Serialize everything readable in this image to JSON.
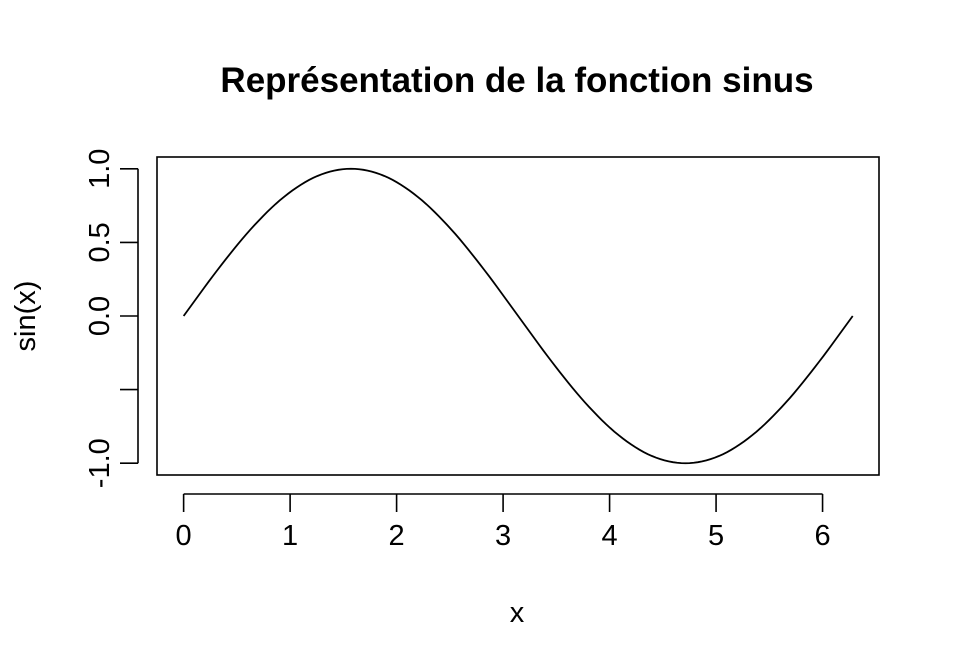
{
  "chart_data": {
    "type": "line",
    "title": "Représentation de la fonction sinus",
    "xlabel": "x",
    "ylabel": "sin(x)",
    "xlim": [
      -0.25,
      6.53
    ],
    "ylim": [
      -1.08,
      1.08
    ],
    "x_ticks": [
      0,
      1,
      2,
      3,
      4,
      5,
      6
    ],
    "x_tick_labels": [
      "0",
      "1",
      "2",
      "3",
      "4",
      "5",
      "6"
    ],
    "y_ticks": [
      -1.0,
      -0.5,
      0.0,
      0.5,
      1.0
    ],
    "y_tick_labels": [
      "-1.0",
      "",
      "0.0",
      "0.5",
      "1.0"
    ],
    "grid": false,
    "box": true,
    "line_color": "#000000",
    "series": [
      {
        "x": [
          0,
          0.3142,
          0.6283,
          0.9425,
          1.2566,
          1.5708,
          1.885,
          2.1991,
          2.5133,
          2.8274,
          3.1416,
          3.4558,
          3.7699,
          4.0841,
          4.3982,
          4.7124,
          5.0265,
          5.3407,
          5.6549,
          5.969,
          6.2832
        ],
        "values": [
          0,
          0.309,
          0.5878,
          0.809,
          0.9511,
          1,
          0.9511,
          0.809,
          0.5878,
          0.309,
          0,
          -0.309,
          -0.5878,
          -0.809,
          -0.9511,
          -1,
          -0.9511,
          -0.809,
          -0.5878,
          -0.309,
          0
        ]
      }
    ]
  }
}
